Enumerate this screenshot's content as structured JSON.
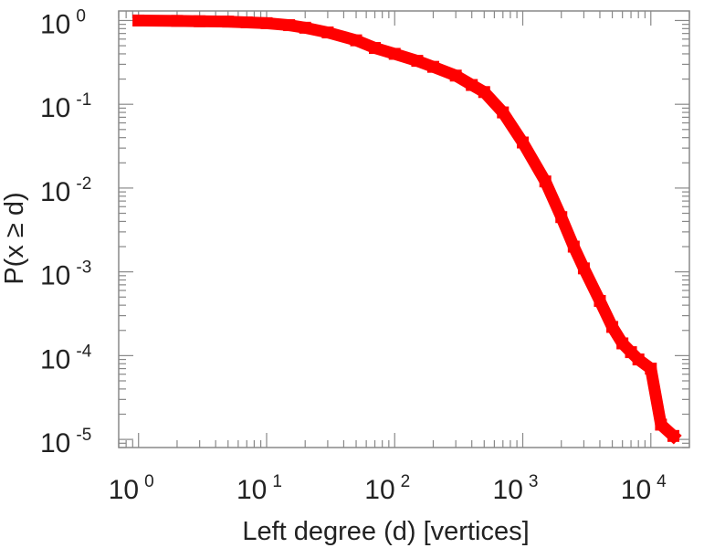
{
  "chart_data": {
    "type": "line",
    "xscale": "log",
    "yscale": "log",
    "xlim": [
      0.7,
      20000
    ],
    "ylim": [
      8e-06,
      1.3
    ],
    "xlabel": "Left degree (d) [vertices]",
    "ylabel": "P(x ≥ d)",
    "x_ticks": [
      {
        "base": "10",
        "exp": "0",
        "value": 1
      },
      {
        "base": "10",
        "exp": "1",
        "value": 10
      },
      {
        "base": "10",
        "exp": "2",
        "value": 100
      },
      {
        "base": "10",
        "exp": "3",
        "value": 1000
      },
      {
        "base": "10",
        "exp": "4",
        "value": 10000
      }
    ],
    "y_ticks": [
      {
        "base": "10",
        "exp": "0",
        "value": 1
      },
      {
        "base": "10",
        "exp": "-1",
        "value": 0.1
      },
      {
        "base": "10",
        "exp": "-2",
        "value": 0.01
      },
      {
        "base": "10",
        "exp": "-3",
        "value": 0.001
      },
      {
        "base": "10",
        "exp": "-4",
        "value": 0.0001
      },
      {
        "base": "10",
        "exp": "-5",
        "value": 1e-05
      }
    ],
    "grid": false,
    "series": [
      {
        "color": "#ff0000",
        "x": [
          1,
          2,
          3,
          5,
          7,
          10,
          15,
          20,
          30,
          50,
          70,
          100,
          150,
          200,
          300,
          400,
          500,
          700,
          1000,
          1500,
          2000,
          2500,
          3000,
          4000,
          5000,
          6000,
          7000,
          8000,
          10000,
          12000,
          15000
        ],
        "y": [
          1.0,
          0.99,
          0.98,
          0.97,
          0.95,
          0.93,
          0.88,
          0.82,
          0.72,
          0.58,
          0.47,
          0.4,
          0.33,
          0.28,
          0.22,
          0.17,
          0.14,
          0.08,
          0.035,
          0.012,
          0.0045,
          0.002,
          0.0011,
          0.00045,
          0.00022,
          0.00014,
          0.00011,
          9e-05,
          7e-05,
          1.5e-05,
          1.1e-05
        ]
      }
    ]
  }
}
